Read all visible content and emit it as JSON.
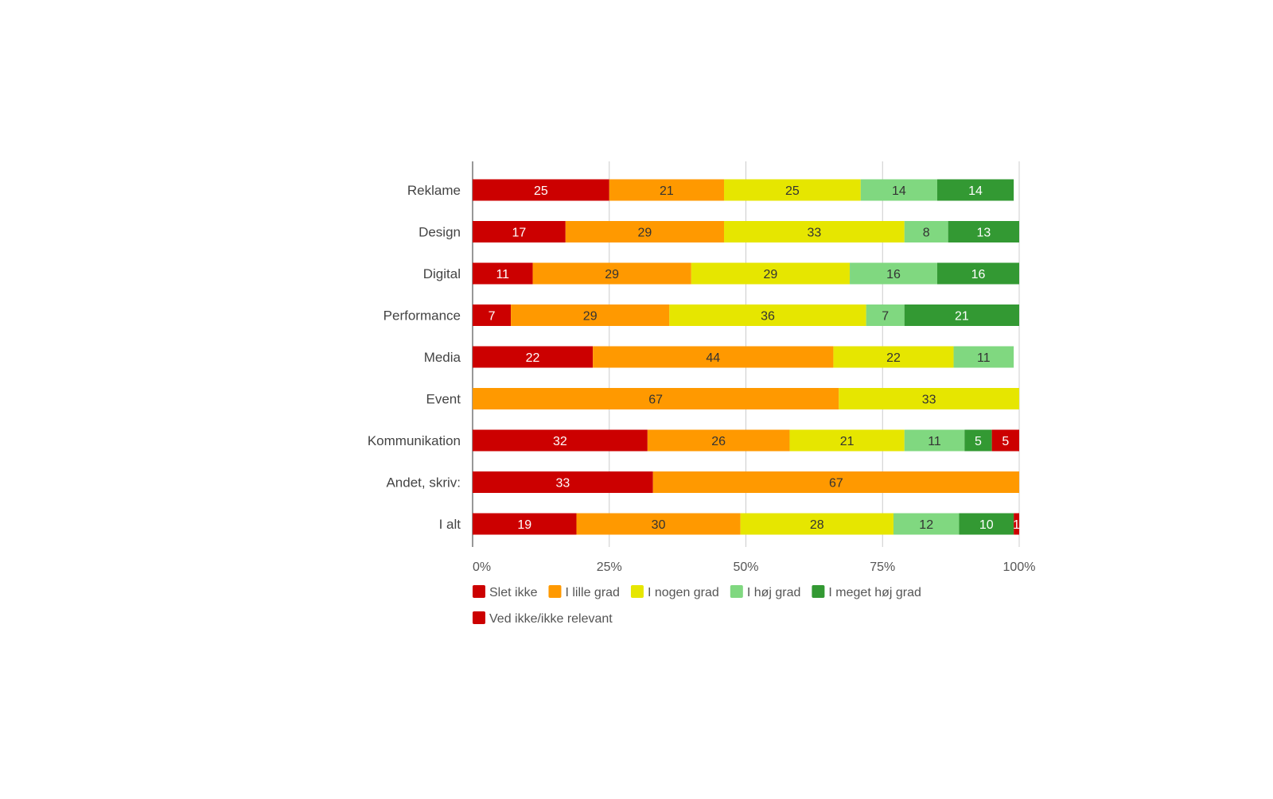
{
  "chart_data": {
    "type": "bar",
    "orientation": "horizontal",
    "stacked": "percent",
    "title": "",
    "xlabel": "",
    "ylabel": "",
    "xlim": [
      0,
      100
    ],
    "x_ticks": [
      "0%",
      "25%",
      "50%",
      "75%",
      "100%"
    ],
    "x_tick_values": [
      0,
      25,
      50,
      75,
      100
    ],
    "grid": true,
    "legend_position": "bottom",
    "categories": [
      "Reklame",
      "Design",
      "Digital",
      "Performance",
      "Media",
      "Event",
      "Kommunikation",
      "Andet, skriv:",
      "I alt"
    ],
    "series": [
      {
        "name": "Slet ikke",
        "color": "#cc0000",
        "label_color": "#ffffff",
        "values": [
          25,
          17,
          11,
          7,
          22,
          0,
          32,
          33,
          19
        ]
      },
      {
        "name": "I lille grad",
        "color": "#ff9900",
        "label_color": "#333333",
        "values": [
          21,
          29,
          29,
          29,
          44,
          67,
          26,
          67,
          30
        ]
      },
      {
        "name": "I nogen grad",
        "color": "#e6e600",
        "label_color": "#333333",
        "values": [
          25,
          33,
          29,
          36,
          22,
          33,
          21,
          0,
          28
        ]
      },
      {
        "name": "I høj grad",
        "color": "#80d880",
        "label_color": "#333333",
        "values": [
          14,
          8,
          16,
          7,
          11,
          0,
          11,
          0,
          12
        ]
      },
      {
        "name": "I meget høj grad",
        "color": "#339933",
        "label_color": "#ffffff",
        "values": [
          14,
          13,
          16,
          21,
          0,
          0,
          5,
          0,
          10
        ]
      },
      {
        "name": "Ved ikke/ikke relevant",
        "color": "#cc0000",
        "label_color": "#ffffff",
        "values": [
          0,
          0,
          0,
          0,
          0,
          0,
          5,
          0,
          1
        ]
      }
    ]
  }
}
